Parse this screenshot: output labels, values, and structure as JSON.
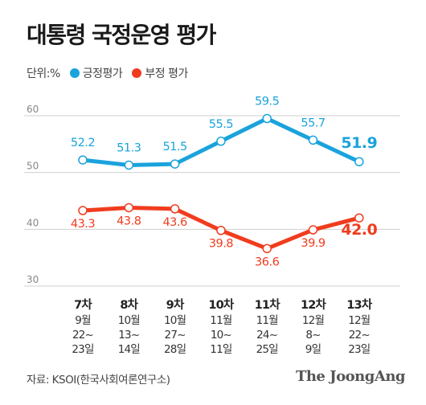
{
  "title": "대통령 국정운영 평가",
  "legend": {
    "unit": "단위:%",
    "positive": "긍정평가",
    "negative": "부정 평가"
  },
  "colors": {
    "positive": "#1aa3dc",
    "negative": "#f03c1e",
    "grid": "#cfcfcf",
    "axis_text": "#888888"
  },
  "source": "자료: KSOI(한국사회여론연구소)",
  "brand": "The JoongAng",
  "chart_data": {
    "type": "line",
    "title": "대통령 국정운영 평가",
    "xlabel": "",
    "ylabel": "",
    "ylim": [
      30,
      60
    ],
    "yticks": [
      30,
      40,
      50,
      60
    ],
    "grid": true,
    "legend_position": "top-left",
    "categories": [
      {
        "label": "7차",
        "dates": [
          "9월",
          "22~",
          "23일"
        ]
      },
      {
        "label": "8차",
        "dates": [
          "10월",
          "13~",
          "14일"
        ]
      },
      {
        "label": "9차",
        "dates": [
          "10월",
          "27~",
          "28일"
        ]
      },
      {
        "label": "10차",
        "dates": [
          "11월",
          "10~",
          "11일"
        ]
      },
      {
        "label": "11차",
        "dates": [
          "11월",
          "24~",
          "25일"
        ]
      },
      {
        "label": "12차",
        "dates": [
          "12월",
          "8~",
          "9일"
        ]
      },
      {
        "label": "13차",
        "dates": [
          "12월",
          "22~",
          "23일"
        ]
      }
    ],
    "series": [
      {
        "name": "긍정평가",
        "color": "#1aa3dc",
        "values": [
          52.2,
          51.3,
          51.5,
          55.5,
          59.5,
          55.7,
          51.9
        ],
        "labels": [
          "52.2",
          "51.3",
          "51.5",
          "55.5",
          "59.5",
          "55.7",
          "51.9"
        ]
      },
      {
        "name": "부정 평가",
        "color": "#f03c1e",
        "values": [
          43.3,
          43.8,
          43.6,
          39.8,
          36.6,
          39.9,
          42.0
        ],
        "labels": [
          "43.3",
          "43.8",
          "43.6",
          "39.8",
          "36.6",
          "39.9",
          "42.0"
        ]
      }
    ]
  }
}
